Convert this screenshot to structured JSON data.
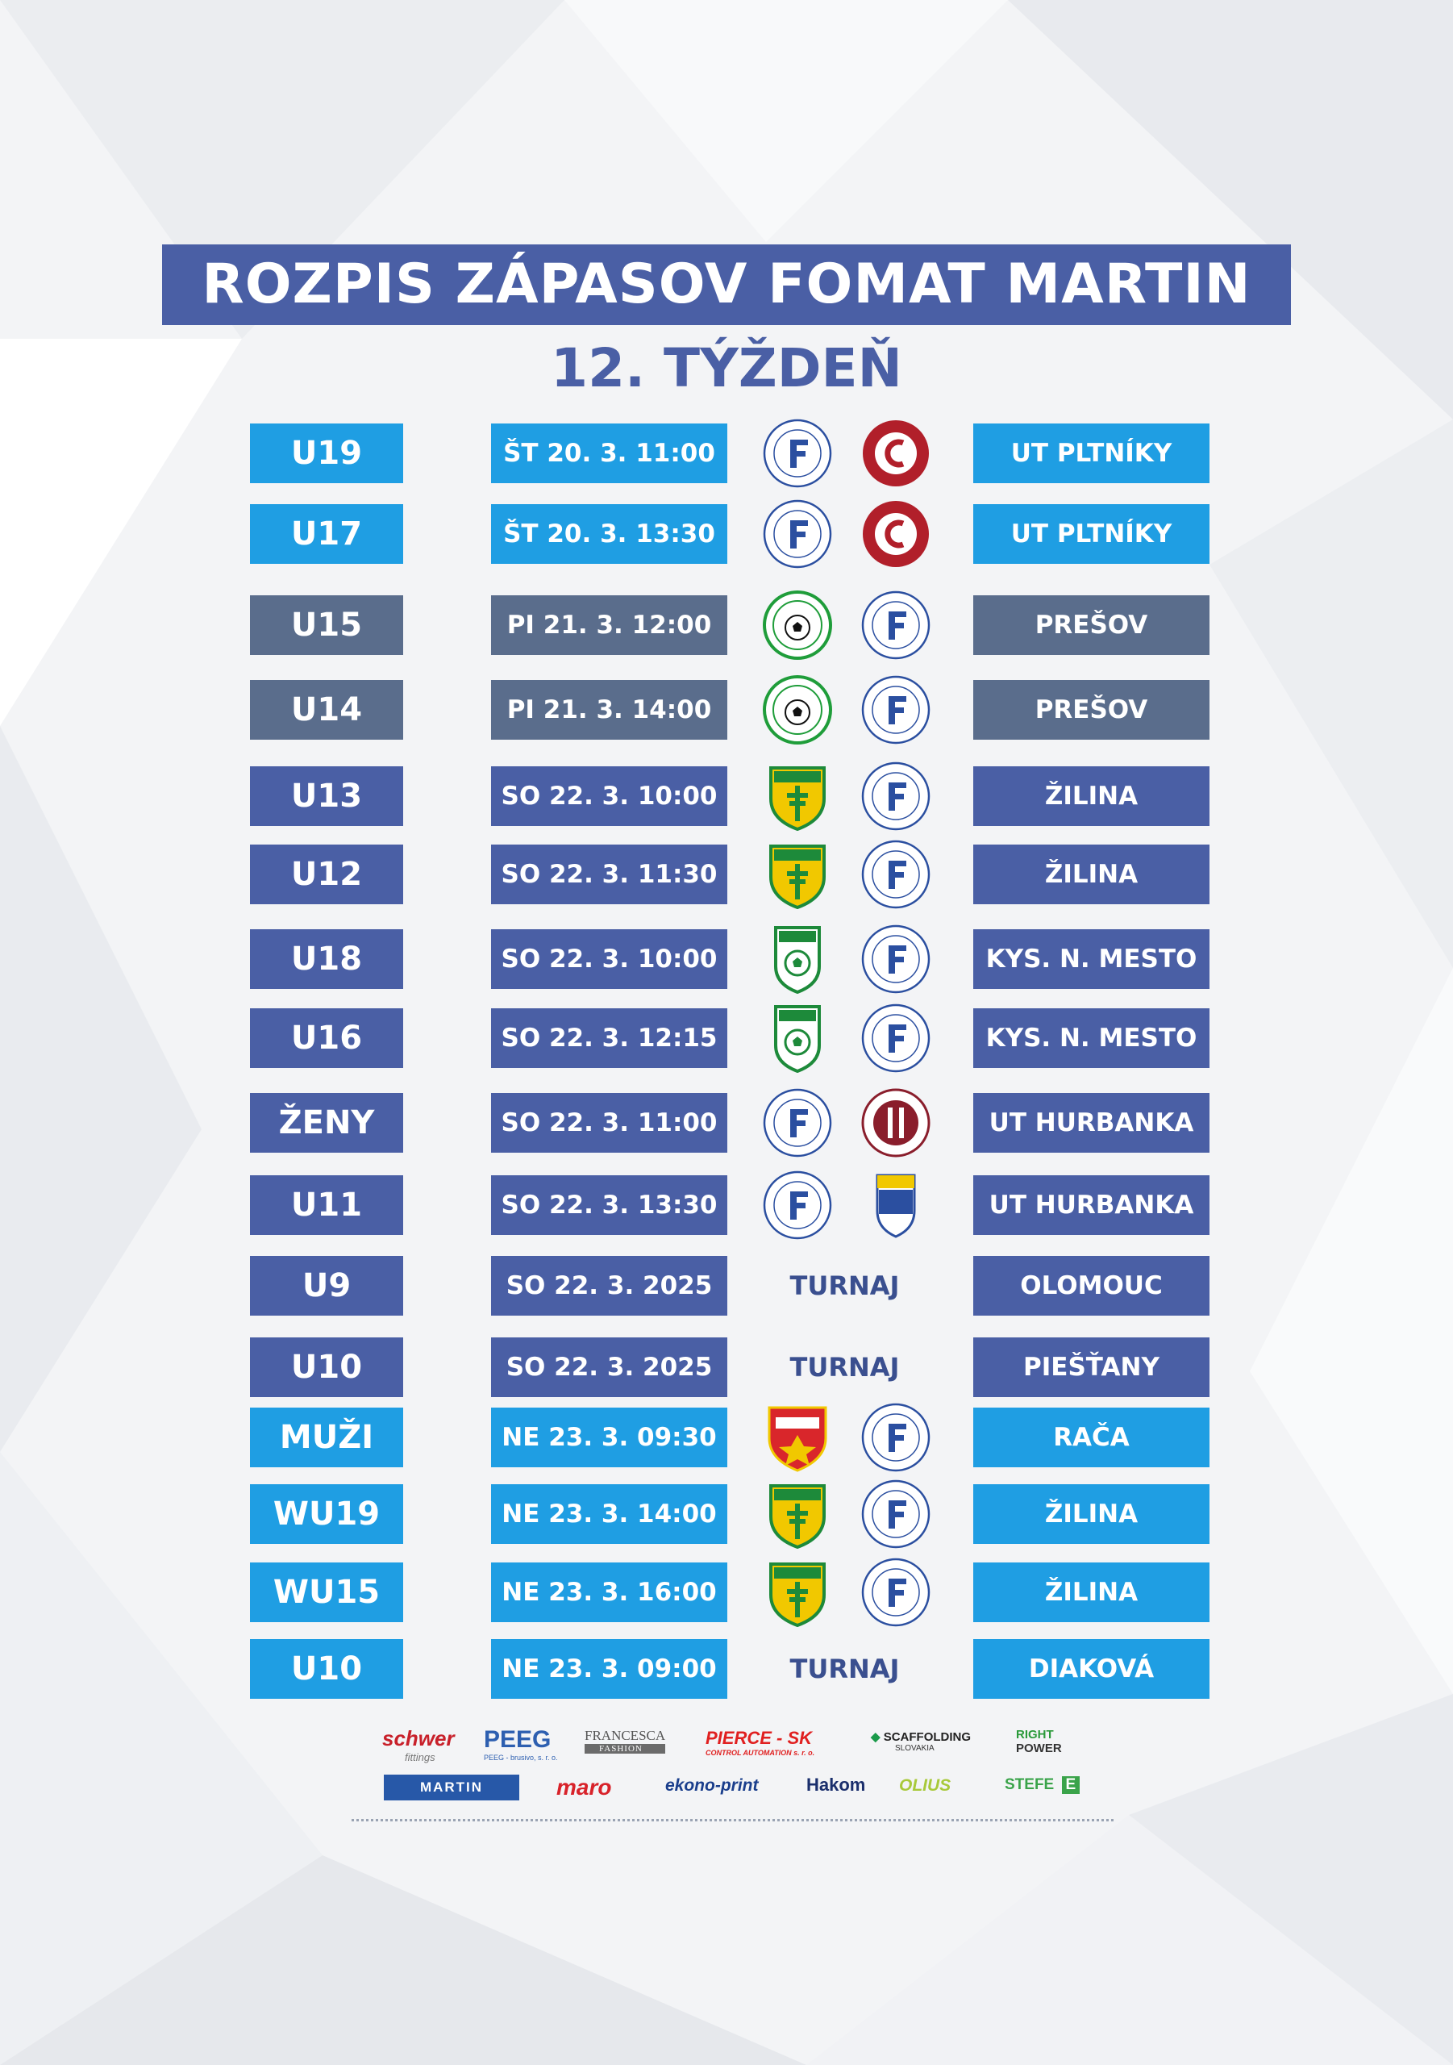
{
  "header": {
    "title": "ROZPIS ZÁPASOV FOMAT MARTIN",
    "subtitle": "12. TÝŽDEŇ"
  },
  "colors": {
    "cyan": "#1f9ee3",
    "slate": "#5a6d8c",
    "blue": "#4a5fa5",
    "turnaj_text": "#3a4f8f"
  },
  "matches": [
    {
      "team": "U19",
      "date": "ŠT 20. 3. 11:00",
      "opponent": "UT PLTNÍKY",
      "style": "cyan",
      "logos": [
        "fomat-logo",
        "fkm-karlova-ves-logo"
      ]
    },
    {
      "team": "U17",
      "date": "ŠT 20. 3. 13:30",
      "opponent": "UT PLTNÍKY",
      "style": "cyan",
      "logos": [
        "fomat-logo",
        "fkm-karlova-ves-logo"
      ]
    },
    {
      "team": "U15",
      "date": "PI 21. 3. 12:00",
      "opponent": "PREŠOV",
      "style": "slate",
      "logos": [
        "tatran-presov-logo",
        "fomat-logo"
      ]
    },
    {
      "team": "U14",
      "date": "PI 21. 3. 14:00",
      "opponent": "PREŠOV",
      "style": "slate",
      "logos": [
        "tatran-presov-logo",
        "fomat-logo"
      ]
    },
    {
      "team": "U13",
      "date": "SO 22. 3. 10:00",
      "opponent": "ŽILINA",
      "style": "blue",
      "logos": [
        "msk-zilina-logo",
        "fomat-logo"
      ]
    },
    {
      "team": "U12",
      "date": "SO 22. 3. 11:30",
      "opponent": "ŽILINA",
      "style": "blue",
      "logos": [
        "msk-zilina-logo",
        "fomat-logo"
      ]
    },
    {
      "team": "U18",
      "date": "SO 22. 3. 10:00",
      "opponent": "KYS. N. MESTO",
      "style": "blue",
      "logos": [
        "kysucke-nove-mesto-logo",
        "fomat-logo"
      ]
    },
    {
      "team": "U16",
      "date": "SO 22. 3. 12:15",
      "opponent": "KYS. N. MESTO",
      "style": "blue",
      "logos": [
        "kysucke-nove-mesto-logo",
        "fomat-logo"
      ]
    },
    {
      "team": "ŽENY",
      "date": "SO 22. 3. 11:00",
      "opponent": "UT HURBANKA",
      "style": "blue",
      "logos": [
        "fomat-logo",
        "ssk-bratislava-logo"
      ]
    },
    {
      "team": "U11",
      "date": "SO 22. 3. 13:30",
      "opponent": "UT HURBANKA",
      "style": "blue",
      "logos": [
        "fomat-logo",
        "divaky-logo"
      ]
    },
    {
      "team": "U9",
      "date": "SO 22. 3. 2025",
      "opponent": "OLOMOUC",
      "style": "blue",
      "turnaj": "TURNAJ"
    },
    {
      "team": "U10",
      "date": "SO 22. 3. 2025",
      "opponent": "PIEŠŤANY",
      "style": "blue",
      "turnaj": "TURNAJ"
    },
    {
      "team": "MUŽI",
      "date": "NE 23. 3. 09:30",
      "opponent": "RAČA",
      "style": "cyan",
      "logos": [
        "raca-logo",
        "fomat-logo"
      ]
    },
    {
      "team": "WU19",
      "date": "NE 23. 3. 14:00",
      "opponent": "ŽILINA",
      "style": "cyan",
      "logos": [
        "msk-zilina-logo",
        "fomat-logo"
      ]
    },
    {
      "team": "WU15",
      "date": "NE 23. 3. 16:00",
      "opponent": "ŽILINA",
      "style": "cyan",
      "logos": [
        "msk-zilina-logo",
        "fomat-logo"
      ]
    },
    {
      "team": "U10",
      "date": "NE 23. 3. 09:00",
      "opponent": "DIAKOVÁ",
      "style": "cyan",
      "turnaj": "TURNAJ"
    }
  ],
  "sponsors": [
    {
      "name": "schwer",
      "sub": "fittings"
    },
    {
      "name": "PEEG",
      "sub": "PEEG - brusivo, s. r. o."
    },
    {
      "name": "FRANCESCA",
      "sub": "FASHION"
    },
    {
      "name": "PIERCE - SK",
      "sub": "CONTROL AUTOMATION s. r. o."
    },
    {
      "name": "SCAFFOLDING",
      "sub": "SLOVAKIA"
    },
    {
      "name": "RIGHT",
      "sub": "POWER"
    },
    {
      "name": "MARTIN",
      "sub": ""
    },
    {
      "name": "maro",
      "sub": ""
    },
    {
      "name": "ekono-print",
      "sub": ""
    },
    {
      "name": "Hakom",
      "sub": ""
    },
    {
      "name": "OLIUS",
      "sub": ""
    },
    {
      "name": "STEFE",
      "sub": "E"
    }
  ]
}
